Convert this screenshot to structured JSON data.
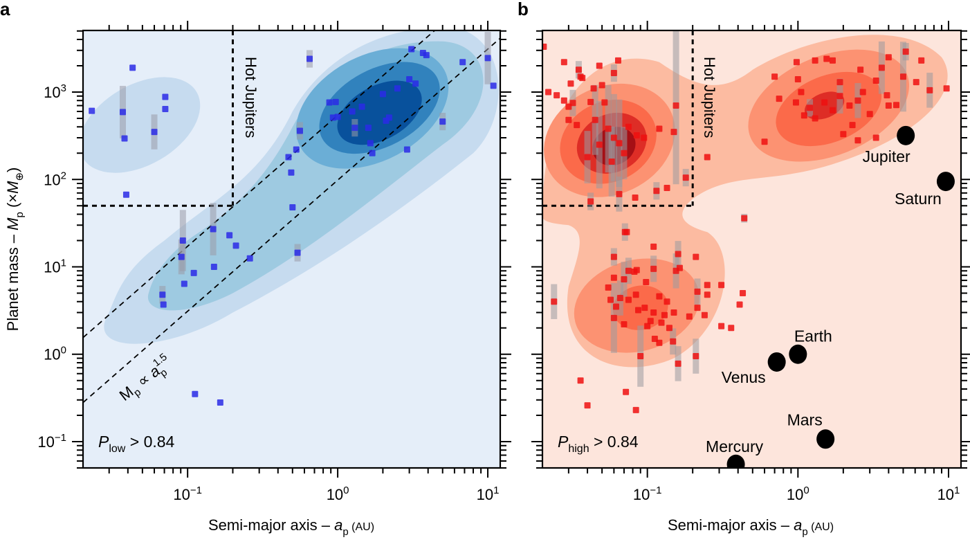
{
  "chart_data": [
    {
      "type": "scatter",
      "panel_label": "a",
      "xlabel": "Semi-major axis – a_p (AU)",
      "xlabel_parts": {
        "main": "Semi-major axis – ",
        "var": "a",
        "sub": "p",
        "unit": " (AU)"
      },
      "ylabel": "Planet mass – M_p (×M⊕)",
      "ylabel_parts": {
        "main": "Planet mass – ",
        "var": "M",
        "sub": "p",
        "unit_open": " (×",
        "unit_var": "M",
        "unit_sub": "⊕",
        "unit_close": ")"
      },
      "xscale": "log",
      "yscale": "log",
      "xlim": [
        0.0201,
        12.1
      ],
      "ylim": [
        0.05,
        5070
      ],
      "xticks": [
        {
          "value": 0.1,
          "base": "10",
          "exp": "−1"
        },
        {
          "value": 1,
          "base": "10",
          "exp": "0"
        },
        {
          "value": 10,
          "base": "10",
          "exp": "1"
        }
      ],
      "yticks": [
        {
          "value": 0.1,
          "base": "10",
          "exp": "−1"
        },
        {
          "value": 1,
          "base": "10",
          "exp": "0"
        },
        {
          "value": 10,
          "base": "10",
          "exp": "1"
        },
        {
          "value": 100,
          "base": "10",
          "exp": "2"
        },
        {
          "value": 1000,
          "base": "10",
          "exp": "3"
        }
      ],
      "colormap": "blues",
      "background_color": "#e5eef9",
      "contour_colors": [
        "#c6dbef",
        "#9ecae1",
        "#6baed6",
        "#3182bd",
        "#08519c"
      ],
      "point_color": "#2a2ae6",
      "annotation_probability": {
        "var": "P",
        "sub": "low",
        "text": " > 0.84"
      },
      "hot_jupiter_label": "Hot Jupiters",
      "hot_jupiter_region": {
        "a_max": 0.2,
        "M_min": 50
      },
      "scaling_label": {
        "var": "M",
        "sub": "p",
        "mid": " ∝ ",
        "var2": "a",
        "sub2": "p",
        "sup2": "1.5"
      },
      "scaling_lines": [
        {
          "a_at_left": 0.0201,
          "M_at_left": 1.55
        },
        {
          "a_at_left": 0.0201,
          "M_at_left": 0.28
        }
      ],
      "scaling_exponent": 1.5,
      "points": [
        {
          "a": 0.023,
          "M": 610
        },
        {
          "a": 0.043,
          "M": 1900
        },
        {
          "a": 0.037,
          "M": 590,
          "err": 0.3
        },
        {
          "a": 0.038,
          "M": 295
        },
        {
          "a": 0.071,
          "M": 880
        },
        {
          "a": 0.071,
          "M": 640
        },
        {
          "a": 0.06,
          "M": 350,
          "err": 0.2
        },
        {
          "a": 0.039,
          "M": 67
        },
        {
          "a": 0.093,
          "M": 20,
          "err": 0.35
        },
        {
          "a": 0.091,
          "M": 13,
          "err": 0.2
        },
        {
          "a": 0.095,
          "M": 6.4
        },
        {
          "a": 0.068,
          "M": 4.8,
          "err": 0.1
        },
        {
          "a": 0.069,
          "M": 3.7
        },
        {
          "a": 0.11,
          "M": 8.5
        },
        {
          "a": 0.15,
          "M": 10
        },
        {
          "a": 0.148,
          "M": 27,
          "err": 0.3
        },
        {
          "a": 0.19,
          "M": 23
        },
        {
          "a": 0.21,
          "M": 17.5
        },
        {
          "a": 0.26,
          "M": 12.5
        },
        {
          "a": 0.112,
          "M": 0.35
        },
        {
          "a": 0.165,
          "M": 0.28
        },
        {
          "a": 0.5,
          "M": 48
        },
        {
          "a": 0.54,
          "M": 14.5,
          "err": 0.1
        },
        {
          "a": 0.47,
          "M": 180
        },
        {
          "a": 0.49,
          "M": 120
        },
        {
          "a": 0.53,
          "M": 220
        },
        {
          "a": 0.56,
          "M": 360,
          "err": 0.1
        },
        {
          "a": 0.65,
          "M": 2400,
          "err": 0.1
        },
        {
          "a": 0.93,
          "M": 510
        },
        {
          "a": 1.0,
          "M": 520
        },
        {
          "a": 0.88,
          "M": 760
        },
        {
          "a": 0.97,
          "M": 770
        },
        {
          "a": 1.25,
          "M": 600
        },
        {
          "a": 1.45,
          "M": 680
        },
        {
          "a": 1.3,
          "M": 390,
          "err": 0.1
        },
        {
          "a": 1.6,
          "M": 390
        },
        {
          "a": 2.1,
          "M": 470
        },
        {
          "a": 2.2,
          "M": 510
        },
        {
          "a": 1.65,
          "M": 260
        },
        {
          "a": 1.7,
          "M": 200
        },
        {
          "a": 2.0,
          "M": 950
        },
        {
          "a": 2.5,
          "M": 1100
        },
        {
          "a": 2.9,
          "M": 220
        },
        {
          "a": 3.1,
          "M": 3100
        },
        {
          "a": 3.7,
          "M": 2800
        },
        {
          "a": 3.9,
          "M": 2650
        },
        {
          "a": 3.3,
          "M": 1250
        },
        {
          "a": 3.0,
          "M": 1400
        },
        {
          "a": 5.0,
          "M": 460,
          "err": 0.1
        },
        {
          "a": 6.8,
          "M": 2200
        },
        {
          "a": 10.0,
          "M": 2450,
          "err": 0.3
        },
        {
          "a": 10.9,
          "M": 1180
        }
      ]
    },
    {
      "type": "scatter",
      "panel_label": "b",
      "xlabel": "Semi-major axis – a_p (AU)",
      "xlabel_parts": {
        "main": "Semi-major axis – ",
        "var": "a",
        "sub": "p",
        "unit": " (AU)"
      },
      "xscale": "log",
      "yscale": "log",
      "xlim": [
        0.0201,
        12.1
      ],
      "ylim": [
        0.05,
        5070
      ],
      "xticks": [
        {
          "value": 0.1,
          "base": "10",
          "exp": "−1"
        },
        {
          "value": 1,
          "base": "10",
          "exp": "0"
        },
        {
          "value": 10,
          "base": "10",
          "exp": "1"
        }
      ],
      "colormap": "reds",
      "background_color": "#fde5dc",
      "contour_colors": [
        "#fcbba1",
        "#fc9272",
        "#fb6a4a",
        "#de2d26",
        "#a50f15"
      ],
      "point_color": "#ee1111",
      "annotation_probability": {
        "var": "P",
        "sub": "high",
        "text": " > 0.84"
      },
      "hot_jupiter_label": "Hot Jupiters",
      "hot_jupiter_region": {
        "a_max": 0.2,
        "M_min": 50
      },
      "solar_system": [
        {
          "name": "Mercury",
          "a": 0.387,
          "M": 0.055
        },
        {
          "name": "Venus",
          "a": 0.723,
          "M": 0.815
        },
        {
          "name": "Earth",
          "a": 1.0,
          "M": 1.0
        },
        {
          "name": "Mars",
          "a": 1.524,
          "M": 0.107
        },
        {
          "name": "Jupiter",
          "a": 5.2,
          "M": 318
        },
        {
          "name": "Saturn",
          "a": 9.58,
          "M": 95
        }
      ],
      "points": [
        {
          "a": 0.0205,
          "M": 3300
        },
        {
          "a": 0.028,
          "M": 2200
        },
        {
          "a": 0.064,
          "M": 2300
        },
        {
          "a": 0.035,
          "M": 1800,
          "err": 0.1
        },
        {
          "a": 0.037,
          "M": 1450
        },
        {
          "a": 0.031,
          "M": 1250
        },
        {
          "a": 0.05,
          "M": 1200
        },
        {
          "a": 0.044,
          "M": 1100
        },
        {
          "a": 0.025,
          "M": 920
        },
        {
          "a": 0.022,
          "M": 1000
        },
        {
          "a": 0.028,
          "M": 800
        },
        {
          "a": 0.03,
          "M": 680
        },
        {
          "a": 0.032,
          "M": 750,
          "err": 0.15
        },
        {
          "a": 0.042,
          "M": 770
        },
        {
          "a": 0.052,
          "M": 760
        },
        {
          "a": 0.045,
          "M": 480,
          "err": 0.4
        },
        {
          "a": 0.055,
          "M": 380,
          "err": 0.5
        },
        {
          "a": 0.06,
          "M": 300,
          "err": 0.5
        },
        {
          "a": 0.048,
          "M": 250,
          "err": 0.5
        },
        {
          "a": 0.065,
          "M": 260,
          "err": 0.5
        },
        {
          "a": 0.07,
          "M": 200,
          "err": 0.3
        },
        {
          "a": 0.04,
          "M": 180,
          "err": 0.3
        },
        {
          "a": 0.058,
          "M": 160,
          "err": 0.4
        },
        {
          "a": 0.075,
          "M": 400
        },
        {
          "a": 0.085,
          "M": 320
        },
        {
          "a": 0.095,
          "M": 300
        },
        {
          "a": 0.03,
          "M": 480
        },
        {
          "a": 0.034,
          "M": 420
        },
        {
          "a": 0.12,
          "M": 380
        },
        {
          "a": 0.155,
          "M": 700,
          "err": 0.9
        },
        {
          "a": 0.15,
          "M": 350
        },
        {
          "a": 0.18,
          "M": 105,
          "err": 0.1
        },
        {
          "a": 0.135,
          "M": 80
        },
        {
          "a": 0.115,
          "M": 74,
          "err": 0.1
        },
        {
          "a": 0.065,
          "M": 68,
          "err": 0.2
        },
        {
          "a": 0.083,
          "M": 62
        },
        {
          "a": 0.042,
          "M": 56,
          "err": 0.1
        },
        {
          "a": 0.25,
          "M": 180
        },
        {
          "a": 0.048,
          "M": 2000
        },
        {
          "a": 0.036,
          "M": 1500
        },
        {
          "a": 0.06,
          "M": 1650,
          "err": 0.1
        },
        {
          "a": 0.071,
          "M": 25,
          "err": 0.1
        },
        {
          "a": 0.073,
          "M": 25
        },
        {
          "a": 0.11,
          "M": 17
        },
        {
          "a": 0.06,
          "M": 13,
          "err": 0.1
        },
        {
          "a": 0.16,
          "M": 14,
          "err": 0.15
        },
        {
          "a": 0.21,
          "M": 13
        },
        {
          "a": 0.11,
          "M": 9.5,
          "err": 0.15
        },
        {
          "a": 0.075,
          "M": 9,
          "err": 0.15
        },
        {
          "a": 0.082,
          "M": 8.8
        },
        {
          "a": 0.085,
          "M": 9.2
        },
        {
          "a": 0.155,
          "M": 9.0,
          "err": 0.2
        },
        {
          "a": 0.164,
          "M": 9.7
        },
        {
          "a": 0.06,
          "M": 7.5
        },
        {
          "a": 0.07,
          "M": 7.2,
          "err": 0.2
        },
        {
          "a": 0.098,
          "M": 6.7
        },
        {
          "a": 0.055,
          "M": 5.8
        },
        {
          "a": 0.25,
          "M": 6.2
        },
        {
          "a": 0.31,
          "M": 6.2
        },
        {
          "a": 0.43,
          "M": 5.0
        },
        {
          "a": 0.25,
          "M": 4.8
        },
        {
          "a": 0.215,
          "M": 5.2,
          "err": 0.15
        },
        {
          "a": 0.024,
          "M": 4.0,
          "err": 0.2
        },
        {
          "a": 0.057,
          "M": 4.2
        },
        {
          "a": 0.066,
          "M": 4.4,
          "err": 0.2
        },
        {
          "a": 0.062,
          "M": 3.5
        },
        {
          "a": 0.084,
          "M": 4.8
        },
        {
          "a": 0.075,
          "M": 4.2
        },
        {
          "a": 0.12,
          "M": 4.6
        },
        {
          "a": 0.135,
          "M": 4.0
        },
        {
          "a": 0.087,
          "M": 3.2
        },
        {
          "a": 0.096,
          "M": 3.4
        },
        {
          "a": 0.11,
          "M": 3.0
        },
        {
          "a": 0.13,
          "M": 2.8
        },
        {
          "a": 0.15,
          "M": 3.0
        },
        {
          "a": 0.19,
          "M": 2.7
        },
        {
          "a": 0.215,
          "M": 3.4
        },
        {
          "a": 0.24,
          "M": 2.8
        },
        {
          "a": 0.31,
          "M": 2.1
        },
        {
          "a": 0.41,
          "M": 3.7
        },
        {
          "a": 0.36,
          "M": 2.0
        },
        {
          "a": 0.06,
          "M": 2.6,
          "err": 0.4
        },
        {
          "a": 0.07,
          "M": 2.2
        },
        {
          "a": 0.1,
          "M": 2.1
        },
        {
          "a": 0.105,
          "M": 2.4
        },
        {
          "a": 0.124,
          "M": 2.3
        },
        {
          "a": 0.14,
          "M": 2.0
        },
        {
          "a": 0.112,
          "M": 1.5
        },
        {
          "a": 0.12,
          "M": 1.35
        },
        {
          "a": 0.148,
          "M": 1.4,
          "err": 0.15
        },
        {
          "a": 0.09,
          "M": 0.95,
          "err": 0.35
        },
        {
          "a": 0.16,
          "M": 0.78,
          "err": 0.2
        },
        {
          "a": 0.21,
          "M": 0.95,
          "err": 0.2
        },
        {
          "a": 0.036,
          "M": 0.5
        },
        {
          "a": 0.072,
          "M": 0.37
        },
        {
          "a": 0.04,
          "M": 0.26
        },
        {
          "a": 0.084,
          "M": 0.23
        },
        {
          "a": 0.44,
          "M": 36,
          "err": 0.05
        },
        {
          "a": 0.7,
          "M": 1500
        },
        {
          "a": 0.75,
          "M": 840
        },
        {
          "a": 0.6,
          "M": 270
        },
        {
          "a": 1.0,
          "M": 1400
        },
        {
          "a": 1.05,
          "M": 1000
        },
        {
          "a": 1.55,
          "M": 2400
        },
        {
          "a": 1.3,
          "M": 2300
        },
        {
          "a": 1.7,
          "M": 2300
        },
        {
          "a": 0.98,
          "M": 2200
        },
        {
          "a": 1.9,
          "M": 1300
        },
        {
          "a": 0.97,
          "M": 760
        },
        {
          "a": 1.1,
          "M": 540
        },
        {
          "a": 1.2,
          "M": 660,
          "err": 0.1
        },
        {
          "a": 1.3,
          "M": 500
        },
        {
          "a": 1.5,
          "M": 760
        },
        {
          "a": 1.7,
          "M": 620
        },
        {
          "a": 1.9,
          "M": 900,
          "err": 0.2
        },
        {
          "a": 2.2,
          "M": 700
        },
        {
          "a": 2.5,
          "M": 800,
          "err": 0.2
        },
        {
          "a": 2.7,
          "M": 1000
        },
        {
          "a": 3.0,
          "M": 560
        },
        {
          "a": 2.3,
          "M": 420
        },
        {
          "a": 2.0,
          "M": 330
        },
        {
          "a": 2.5,
          "M": 280
        },
        {
          "a": 3.3,
          "M": 1350
        },
        {
          "a": 3.6,
          "M": 1900,
          "err": 0.3
        },
        {
          "a": 4.0,
          "M": 2500
        },
        {
          "a": 5.0,
          "M": 1500,
          "err": 0.4
        },
        {
          "a": 3.9,
          "M": 920
        },
        {
          "a": 4.0,
          "M": 700
        },
        {
          "a": 4.5,
          "M": 710
        },
        {
          "a": 5.2,
          "M": 2900,
          "err": 0.1
        },
        {
          "a": 6.6,
          "M": 2300
        },
        {
          "a": 6.1,
          "M": 1300
        },
        {
          "a": 7.5,
          "M": 1050,
          "err": 0.2
        },
        {
          "a": 9.7,
          "M": 1100
        },
        {
          "a": 3.3,
          "M": 300
        },
        {
          "a": 2.6,
          "M": 1800
        }
      ]
    }
  ]
}
